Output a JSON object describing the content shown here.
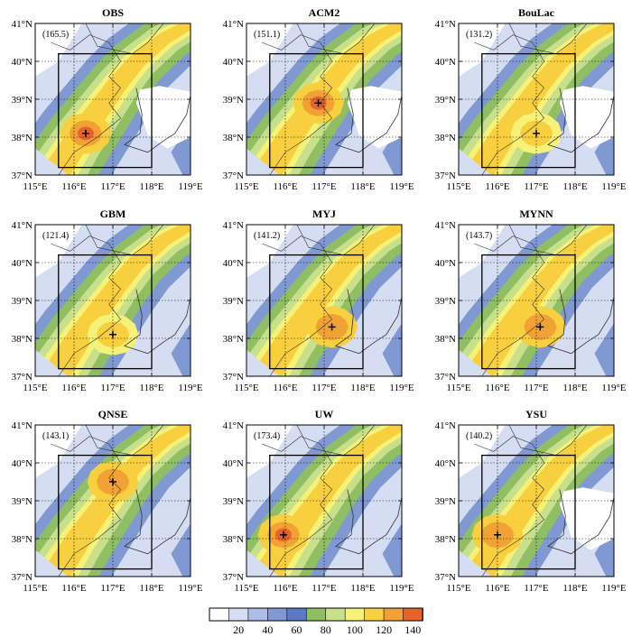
{
  "figure": {
    "colorbar": {
      "colors": [
        "#ffffff",
        "#d5ddf2",
        "#aebde6",
        "#8099d3",
        "#5d79c4",
        "#8fbe63",
        "#c8df8c",
        "#f5f277",
        "#f8cf3f",
        "#f2a235",
        "#e8632a"
      ],
      "tick_labels": [
        "20",
        "40",
        "60",
        "80",
        "100",
        "120",
        "140"
      ]
    },
    "tick_labels": {
      "lon": [
        "115°E",
        "116°E",
        "117°E",
        "118°E",
        "119°E"
      ],
      "lat": [
        "37°N",
        "38°N",
        "39°N",
        "40°N",
        "41°N"
      ]
    },
    "panels": [
      {
        "title": "OBS",
        "max": "(165.5)",
        "center": [
          116.3,
          38.1
        ],
        "ridge_level": 9,
        "bay_hole": true
      },
      {
        "title": "ACM2",
        "max": "(151.1)",
        "center": [
          116.85,
          38.9
        ],
        "ridge_level": 9,
        "bay_hole": true
      },
      {
        "title": "BouLac",
        "max": "(131.2)",
        "center": [
          117.0,
          38.1
        ],
        "ridge_level": 7,
        "bay_hole": true
      },
      {
        "title": "GBM",
        "max": "(121.4)",
        "center": [
          117.0,
          38.1
        ],
        "ridge_level": 7,
        "bay_hole": false
      },
      {
        "title": "MYJ",
        "max": "(141.2)",
        "center": [
          117.2,
          38.3
        ],
        "ridge_level": 8,
        "bay_hole": false
      },
      {
        "title": "MYNN",
        "max": "(143.7)",
        "center": [
          117.1,
          38.3
        ],
        "ridge_level": 8,
        "bay_hole": false
      },
      {
        "title": "QNSE",
        "max": "(143.1)",
        "center": [
          117.0,
          39.5
        ],
        "ridge_level": 8,
        "bay_hole": false
      },
      {
        "title": "UW",
        "max": "(173.4)",
        "center": [
          115.95,
          38.1
        ],
        "ridge_level": 10,
        "bay_hole": false
      },
      {
        "title": "YSU",
        "max": "(140.2)",
        "center": [
          116.0,
          38.1
        ],
        "ridge_level": 8,
        "bay_hole": true
      }
    ]
  }
}
